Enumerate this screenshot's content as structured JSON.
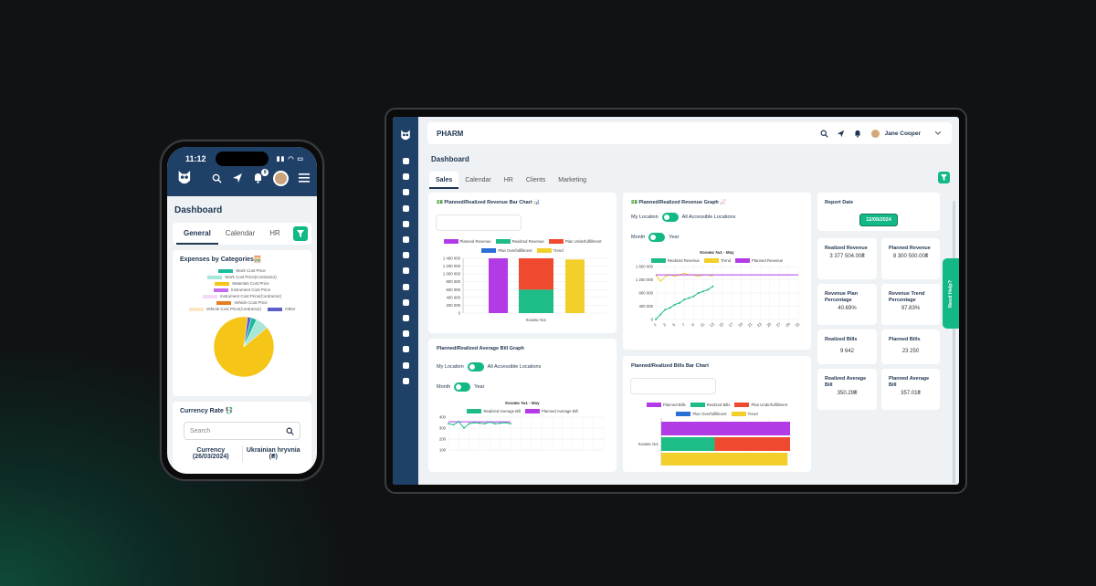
{
  "phone": {
    "time": "11:12",
    "title": "Dashboard",
    "tabs": [
      "General",
      "Calendar",
      "HR"
    ],
    "expenses": {
      "title": "Expenses by Categories🧮",
      "legend": [
        {
          "name": "Work Cost Price",
          "color": "#1abc9c"
        },
        {
          "name": "Work Cost Price(Contractor)",
          "color": "#a8e6da"
        },
        {
          "name": "Materials Cost Price",
          "color": "#f5c518"
        },
        {
          "name": "Instrument Cost Price",
          "color": "#c56cf0"
        },
        {
          "name": "Instrument Cost Price(Contractor)",
          "color": "#f3d9f7"
        },
        {
          "name": "Vehicle Cost Price",
          "color": "#e67e22"
        },
        {
          "name": "Vehicle Cost Price(Contractor)",
          "color": "#fbe7c6"
        },
        {
          "name": "Other",
          "color": "#5b5fc7"
        }
      ]
    },
    "currency": {
      "title": "Currency Rate 💱",
      "search_placeholder": "Search",
      "col1": "Currency (26/03/2024)",
      "col2": "Ukrainian hryvnia (₴)"
    },
    "notif_count": "8"
  },
  "tablet": {
    "app_title": "PHARM",
    "user": "Jane Cooper",
    "page_title": "Dashboard",
    "tabs": [
      "Sales",
      "Calendar",
      "HR",
      "Clients",
      "Marketing"
    ],
    "help": "Need Help?",
    "bar_chart": {
      "title": "💵 Planned/Realized Revenue Bar Chart 📊",
      "legend": [
        {
          "name": "Planned Revenue",
          "color": "#b23be6"
        },
        {
          "name": "Realized Revenue",
          "color": "#1ebc86"
        },
        {
          "name": "Plan Underfulfillment",
          "color": "#ef4a2f"
        },
        {
          "name": "Plan Overfulfillment",
          "color": "#2a6fd6"
        },
        {
          "name": "Trend",
          "color": "#f2cf2b"
        }
      ],
      "y_ticks": [
        "1 400 000",
        "1 200 000",
        "1 000 000",
        "800 000",
        "600 000",
        "400 000",
        "200 000",
        "0"
      ],
      "category": "Косивс №1"
    },
    "revenue_graph": {
      "title": "💵 Planned/Realized Revenue Graph 📈",
      "my_location": "My Location",
      "all_locations": "All Accessible Locations",
      "month": "Month",
      "year": "Year",
      "chart_title": "Косивс №1 - May",
      "legend": [
        {
          "name": "Realized Revenue",
          "color": "#1ebc86"
        },
        {
          "name": "Trend",
          "color": "#f2cf2b"
        },
        {
          "name": "Planned Revenue",
          "color": "#b23be6"
        }
      ],
      "y_ticks": [
        "1 600 000",
        "1 200 000",
        "800 000",
        "400 000",
        "0"
      ],
      "x_ticks": [
        "1",
        "3",
        "5",
        "7",
        "9",
        "11",
        "13",
        "15",
        "17",
        "19",
        "21",
        "23",
        "25",
        "27",
        "29",
        "31"
      ]
    },
    "avg_bill": {
      "title": "Planned/Realized Average Bill Graph",
      "my_location": "My Location",
      "all_locations": "All Accessible Locations",
      "month": "Month",
      "year": "Year",
      "chart_title": "Косивс №1 - May",
      "legend": [
        {
          "name": "Realized Average Bill",
          "color": "#1ebc86"
        },
        {
          "name": "Planned Average Bill",
          "color": "#b23be6"
        }
      ],
      "y_ticks": [
        "400",
        "300",
        "200",
        "100"
      ]
    },
    "bills_bar": {
      "title": "Planned/Realized Bills Bar Chart",
      "legend": [
        {
          "name": "Planned Bills",
          "color": "#b23be6"
        },
        {
          "name": "Realized Bills",
          "color": "#1ebc86"
        },
        {
          "name": "Plan Underfulfillment",
          "color": "#ef4a2f"
        },
        {
          "name": "Plan Overfulfillment",
          "color": "#2a6fd6"
        },
        {
          "name": "Trend",
          "color": "#f2cf2b"
        }
      ],
      "category": "Косивс №1"
    },
    "kpis": {
      "report_date_label": "Report Date",
      "report_date": "12/05/2024",
      "realized_revenue_label": "Realized Revenue",
      "realized_revenue": "3 377 504.00₴",
      "planned_revenue_label": "Planned Revenue",
      "planned_revenue": "8 300 500.00₴",
      "revenue_plan_pct_label": "Revenue Plan Percentage",
      "revenue_plan_pct": "40.69%",
      "revenue_trend_pct_label": "Revenue Trend Percentage",
      "revenue_trend_pct": "97.83%",
      "realized_bills_label": "Realized Bills",
      "realized_bills": "9 642",
      "planned_bills_label": "Planned Bills",
      "planned_bills": "23 250",
      "realized_avg_bill_label": "Realized Average Bill",
      "realized_avg_bill": "350.29₴",
      "planned_avg_bill_label": "Planned Average Bill",
      "planned_avg_bill": "357.01₴"
    }
  },
  "chart_data": [
    {
      "type": "pie",
      "title": "Expenses by Categories🧮",
      "categories": [
        "Work Cost Price",
        "Work Cost Price(Contractor)",
        "Materials Cost Price",
        "Other"
      ],
      "values": [
        3,
        7,
        88,
        2
      ]
    },
    {
      "type": "bar",
      "title": "💵 Planned/Realized Revenue Bar Chart 📊",
      "categories": [
        "Косивс №1"
      ],
      "series": [
        {
          "name": "Planned Revenue",
          "values": [
            1400000
          ]
        },
        {
          "name": "Realized Revenue",
          "values": [
            600000
          ]
        },
        {
          "name": "Plan Underfulfillment",
          "values": [
            800000
          ]
        },
        {
          "name": "Trend",
          "values": [
            1370000
          ]
        }
      ],
      "ylim": [
        0,
        1400000
      ]
    },
    {
      "type": "line",
      "title": "Косивс №1 - May",
      "x": [
        1,
        2,
        3,
        4,
        5,
        6,
        7,
        8,
        9,
        10,
        11,
        12,
        13
      ],
      "series": [
        {
          "name": "Realized Revenue",
          "values": [
            0,
            150000,
            300000,
            350000,
            450000,
            500000,
            600000,
            650000,
            700000,
            800000,
            850000,
            900000,
            1000000
          ]
        },
        {
          "name": "Trend",
          "values": [
            1350000,
            1150000,
            1300000,
            1350000,
            1300000,
            1350000,
            1400000,
            1350000,
            1350000,
            1300000,
            1350000,
            1350000,
            1300000
          ]
        },
        {
          "name": "Planned Revenue",
          "values": [
            1350000,
            1350000,
            1350000,
            1350000,
            1350000,
            1350000,
            1350000,
            1350000,
            1350000,
            1350000,
            1350000,
            1350000,
            1350000
          ]
        }
      ],
      "ylim": [
        0,
        1600000
      ]
    },
    {
      "type": "line",
      "title": "Косивс №1 - May",
      "x": [
        1,
        2,
        3,
        4,
        5,
        6,
        7,
        8,
        9,
        10,
        11,
        12,
        13
      ],
      "series": [
        {
          "name": "Realized Average Bill",
          "values": [
            340,
            330,
            360,
            300,
            340,
            350,
            345,
            340,
            355,
            340,
            345,
            350,
            340
          ]
        },
        {
          "name": "Planned Average Bill",
          "values": [
            357,
            357,
            357,
            357,
            357,
            357,
            357,
            357,
            357,
            357,
            357,
            357,
            357
          ]
        }
      ],
      "ylim": [
        100,
        400
      ]
    },
    {
      "type": "bar",
      "title": "Planned/Realized Bills Bar Chart",
      "categories": [
        "Косивс №1"
      ],
      "series": [
        {
          "name": "Planned Bills",
          "values": [
            23250
          ]
        },
        {
          "name": "Realized Bills",
          "values": [
            9642
          ]
        },
        {
          "name": "Plan Underfulfillment",
          "values": [
            13608
          ]
        },
        {
          "name": "Trend",
          "values": [
            22800
          ]
        }
      ]
    }
  ]
}
